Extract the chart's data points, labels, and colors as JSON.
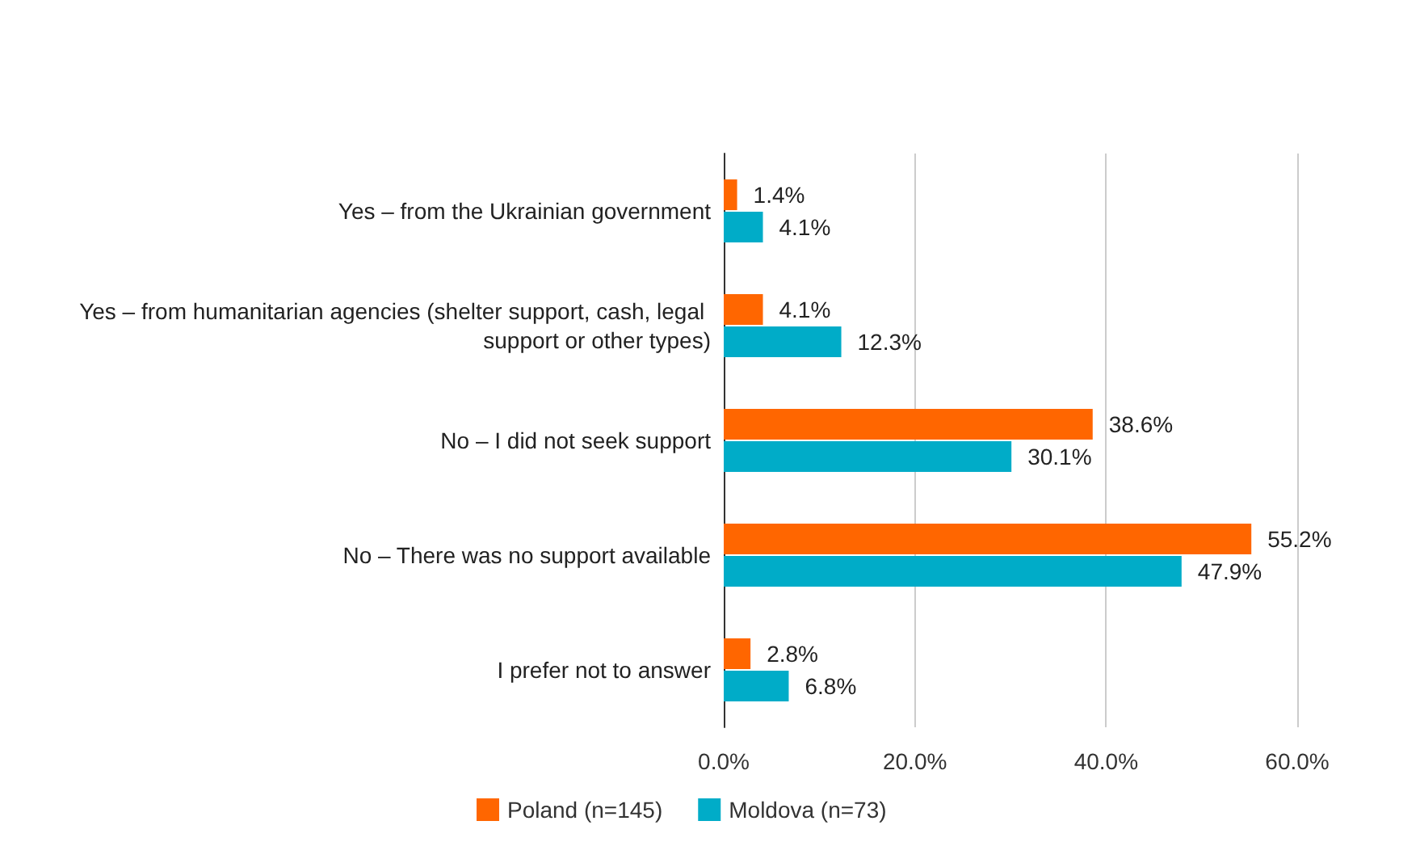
{
  "chart_data": {
    "type": "bar",
    "orientation": "horizontal",
    "categories": [
      "Yes – from the Ukrainian government",
      "Yes – from humanitarian agencies (shelter support, cash, legal support or other types)",
      "No – I did not seek support",
      "No – There was no support available",
      "I prefer not to answer"
    ],
    "series": [
      {
        "name": "Poland (n=145)",
        "color": "#ff6600",
        "values": [
          1.4,
          4.1,
          38.6,
          55.2,
          2.8
        ],
        "value_labels": [
          "1.4%",
          "4.1%",
          "38.6%",
          "55.2%",
          "2.8%"
        ]
      },
      {
        "name": "Moldova (n=73)",
        "color": "#00acc8",
        "values": [
          4.1,
          12.3,
          30.1,
          47.9,
          6.8
        ],
        "value_labels": [
          "4.1%",
          "12.3%",
          "30.1%",
          "47.9%",
          "6.8%"
        ]
      }
    ],
    "xlim": [
      0,
      60
    ],
    "xticks": [
      {
        "value": 0,
        "label": "0.0%"
      },
      {
        "value": 20,
        "label": "20.0%"
      },
      {
        "value": 40,
        "label": "40.0%"
      },
      {
        "value": 60,
        "label": "60.0%"
      }
    ],
    "grid": "x",
    "legend": "bottom"
  }
}
